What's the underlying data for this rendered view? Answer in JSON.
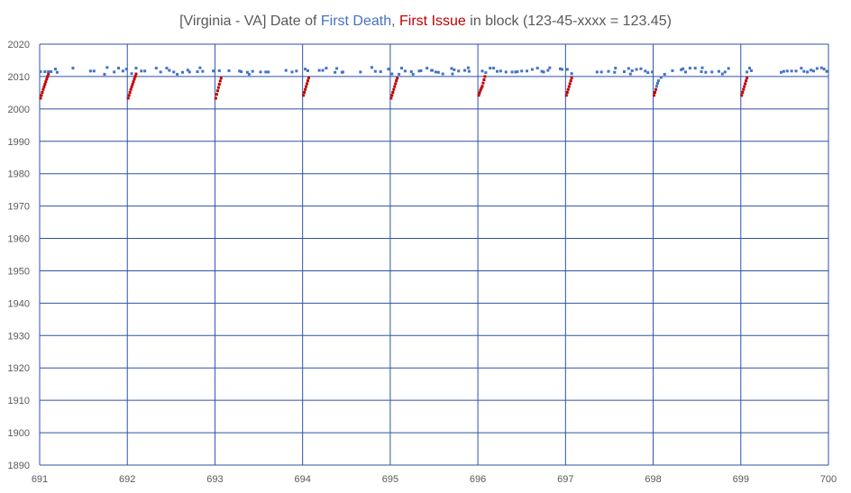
{
  "chart_data": {
    "type": "scatter",
    "title_parts": [
      {
        "text": "[Virginia - VA] Date of ",
        "color": "#595959"
      },
      {
        "text": "First Death",
        "color": "#4472c4"
      },
      {
        "text": ", ",
        "color": "#595959"
      },
      {
        "text": "First Issue",
        "color": "#c00000"
      },
      {
        "text": " in block (123-45-xxxx = 123.45)",
        "color": "#595959"
      }
    ],
    "xlabel": "",
    "ylabel": "",
    "xlim": [
      691,
      700
    ],
    "ylim": [
      1890,
      2020
    ],
    "xticks": [
      "691",
      "692",
      "693",
      "694",
      "695",
      "696",
      "697",
      "698",
      "699",
      "700"
    ],
    "yticks": [
      "2020",
      "2010",
      "2000",
      "1990",
      "1980",
      "1970",
      "1960",
      "1950",
      "1940",
      "1930",
      "1920",
      "1910",
      "1900",
      "1890"
    ],
    "grid": true,
    "grid_color": "#2f52a8",
    "legend": "none",
    "series": [
      {
        "color": "#c00000",
        "points": [
          [
            691.01,
            2003.3
          ],
          [
            691.02,
            2004.2
          ],
          [
            691.03,
            2005.1
          ],
          [
            691.04,
            2006.0
          ],
          [
            691.05,
            2006.8
          ],
          [
            691.06,
            2007.6
          ],
          [
            691.07,
            2008.4
          ],
          [
            691.08,
            2009.2
          ],
          [
            691.09,
            2010.0
          ],
          [
            691.1,
            2010.8
          ],
          [
            692.01,
            2003.3
          ],
          [
            692.02,
            2004.2
          ],
          [
            692.03,
            2005.1
          ],
          [
            692.04,
            2006.0
          ],
          [
            692.05,
            2006.8
          ],
          [
            692.06,
            2007.6
          ],
          [
            692.07,
            2008.4
          ],
          [
            692.08,
            2009.2
          ],
          [
            692.09,
            2010.0
          ],
          [
            692.1,
            2010.8
          ],
          [
            693.01,
            2003.3
          ],
          [
            693.02,
            2004.5
          ],
          [
            693.03,
            2005.6
          ],
          [
            693.04,
            2006.6
          ],
          [
            693.05,
            2007.6
          ],
          [
            693.06,
            2008.6
          ],
          [
            693.07,
            2009.5
          ],
          [
            694.01,
            2004.2
          ],
          [
            694.02,
            2005.1
          ],
          [
            694.03,
            2006.0
          ],
          [
            694.04,
            2006.9
          ],
          [
            694.05,
            2007.8
          ],
          [
            694.06,
            2008.7
          ],
          [
            694.07,
            2009.6
          ],
          [
            695.01,
            2003.3
          ],
          [
            695.02,
            2004.2
          ],
          [
            695.03,
            2005.1
          ],
          [
            695.04,
            2006.0
          ],
          [
            695.05,
            2006.9
          ],
          [
            695.06,
            2007.8
          ],
          [
            695.07,
            2008.7
          ],
          [
            695.08,
            2009.5
          ],
          [
            696.01,
            2004.2
          ],
          [
            696.02,
            2005.0
          ],
          [
            696.03,
            2005.8
          ],
          [
            696.04,
            2006.4
          ],
          [
            696.05,
            2007.0
          ],
          [
            696.06,
            2008.0
          ],
          [
            696.07,
            2009.0
          ],
          [
            696.08,
            2010.0
          ],
          [
            697.01,
            2004.2
          ],
          [
            697.02,
            2005.1
          ],
          [
            697.03,
            2006.0
          ],
          [
            697.04,
            2006.9
          ],
          [
            697.05,
            2007.8
          ],
          [
            697.06,
            2008.7
          ],
          [
            697.07,
            2009.6
          ],
          [
            698.01,
            2004.2
          ],
          [
            698.02,
            2005.1
          ],
          [
            698.03,
            2006.0
          ],
          [
            699.01,
            2004.2
          ],
          [
            699.02,
            2005.1
          ],
          [
            699.03,
            2006.0
          ],
          [
            699.04,
            2006.9
          ],
          [
            699.05,
            2007.8
          ],
          [
            699.06,
            2008.7
          ],
          [
            699.07,
            2009.6
          ]
        ]
      },
      {
        "color": "#4472c4",
        "points": [
          [
            691.01,
            2011.5
          ],
          [
            691.06,
            2011.5
          ],
          [
            691.1,
            2011.5
          ],
          [
            691.13,
            2011.5
          ],
          [
            691.18,
            2012.3
          ],
          [
            691.2,
            2011.3
          ],
          [
            691.38,
            2012.6
          ],
          [
            691.58,
            2011.7
          ],
          [
            691.62,
            2011.7
          ],
          [
            691.74,
            2010.7
          ],
          [
            691.77,
            2012.8
          ],
          [
            691.85,
            2011.4
          ],
          [
            691.9,
            2012.6
          ],
          [
            691.95,
            2011.7
          ],
          [
            691.99,
            2012.3
          ],
          [
            692.05,
            2010.9
          ],
          [
            692.1,
            2012.6
          ],
          [
            692.16,
            2011.7
          ],
          [
            692.2,
            2011.7
          ],
          [
            692.33,
            2012.6
          ],
          [
            692.38,
            2011.4
          ],
          [
            692.45,
            2012.6
          ],
          [
            692.48,
            2011.9
          ],
          [
            692.53,
            2011.4
          ],
          [
            692.57,
            2010.7
          ],
          [
            692.63,
            2011.3
          ],
          [
            692.69,
            2012.0
          ],
          [
            692.71,
            2011.4
          ],
          [
            692.8,
            2011.5
          ],
          [
            692.83,
            2012.7
          ],
          [
            692.86,
            2011.6
          ],
          [
            692.98,
            2011.7
          ],
          [
            693.05,
            2011.8
          ],
          [
            693.16,
            2011.8
          ],
          [
            693.28,
            2011.7
          ],
          [
            693.3,
            2011.5
          ],
          [
            693.37,
            2011.3
          ],
          [
            693.39,
            2010.7
          ],
          [
            693.43,
            2011.6
          ],
          [
            693.52,
            2011.4
          ],
          [
            693.58,
            2011.4
          ],
          [
            693.61,
            2011.4
          ],
          [
            693.81,
            2011.9
          ],
          [
            693.88,
            2011.4
          ],
          [
            693.93,
            2011.7
          ],
          [
            694.03,
            2012.3
          ],
          [
            694.06,
            2011.8
          ],
          [
            694.19,
            2011.9
          ],
          [
            694.23,
            2011.9
          ],
          [
            694.27,
            2012.6
          ],
          [
            694.37,
            2011.3
          ],
          [
            694.39,
            2012.5
          ],
          [
            694.45,
            2011.3
          ],
          [
            694.46,
            2011.4
          ],
          [
            694.66,
            2011.4
          ],
          [
            694.79,
            2012.8
          ],
          [
            694.83,
            2011.6
          ],
          [
            694.89,
            2011.5
          ],
          [
            694.98,
            2012.3
          ],
          [
            695.02,
            2010.8
          ],
          [
            695.1,
            2010.7
          ],
          [
            695.13,
            2012.6
          ],
          [
            695.17,
            2011.7
          ],
          [
            695.24,
            2011.5
          ],
          [
            695.26,
            2010.7
          ],
          [
            695.33,
            2011.7
          ],
          [
            695.35,
            2011.8
          ],
          [
            695.42,
            2012.6
          ],
          [
            695.47,
            2011.9
          ],
          [
            695.48,
            2011.9
          ],
          [
            695.52,
            2011.4
          ],
          [
            695.55,
            2011.3
          ],
          [
            695.6,
            2010.8
          ],
          [
            695.7,
            2012.5
          ],
          [
            695.71,
            2010.8
          ],
          [
            695.73,
            2012.1
          ],
          [
            695.78,
            2011.7
          ],
          [
            695.85,
            2011.9
          ],
          [
            695.89,
            2012.7
          ],
          [
            695.9,
            2011.6
          ],
          [
            696.05,
            2011.7
          ],
          [
            696.09,
            2011.2
          ],
          [
            696.14,
            2012.6
          ],
          [
            696.18,
            2012.6
          ],
          [
            696.22,
            2011.6
          ],
          [
            696.26,
            2011.7
          ],
          [
            696.32,
            2011.4
          ],
          [
            696.39,
            2011.4
          ],
          [
            696.43,
            2011.4
          ],
          [
            696.45,
            2011.5
          ],
          [
            696.5,
            2011.7
          ],
          [
            696.56,
            2011.7
          ],
          [
            696.62,
            2012.2
          ],
          [
            696.68,
            2012.6
          ],
          [
            696.73,
            2011.6
          ],
          [
            696.75,
            2011.4
          ],
          [
            696.8,
            2011.9
          ],
          [
            696.82,
            2012.7
          ],
          [
            696.94,
            2012.4
          ],
          [
            696.96,
            2012.2
          ],
          [
            697.02,
            2012.2
          ],
          [
            697.07,
            2010.9
          ],
          [
            697.36,
            2011.4
          ],
          [
            697.41,
            2011.4
          ],
          [
            697.49,
            2011.6
          ],
          [
            697.56,
            2011.3
          ],
          [
            697.57,
            2012.6
          ],
          [
            697.67,
            2011.5
          ],
          [
            697.72,
            2012.5
          ],
          [
            697.74,
            2010.8
          ],
          [
            697.76,
            2011.8
          ],
          [
            697.81,
            2012.2
          ],
          [
            697.86,
            2012.4
          ],
          [
            697.91,
            2011.7
          ],
          [
            697.94,
            2011.2
          ],
          [
            697.99,
            2011.4
          ],
          [
            698.04,
            2007.0
          ],
          [
            698.05,
            2007.9
          ],
          [
            698.06,
            2008.7
          ],
          [
            698.09,
            2009.7
          ],
          [
            698.13,
            2010.7
          ],
          [
            698.22,
            2011.8
          ],
          [
            698.32,
            2012.1
          ],
          [
            698.34,
            2012.4
          ],
          [
            698.37,
            2011.4
          ],
          [
            698.42,
            2012.6
          ],
          [
            698.48,
            2012.6
          ],
          [
            698.55,
            2011.5
          ],
          [
            698.56,
            2012.7
          ],
          [
            698.6,
            2011.3
          ],
          [
            698.67,
            2011.4
          ],
          [
            698.75,
            2011.6
          ],
          [
            698.79,
            2010.8
          ],
          [
            698.82,
            2011.4
          ],
          [
            698.86,
            2012.5
          ],
          [
            699.07,
            2011.4
          ],
          [
            699.1,
            2012.6
          ],
          [
            699.12,
            2011.8
          ],
          [
            699.46,
            2011.3
          ],
          [
            699.49,
            2011.6
          ],
          [
            699.53,
            2011.7
          ],
          [
            699.58,
            2011.7
          ],
          [
            699.63,
            2011.7
          ],
          [
            699.69,
            2012.6
          ],
          [
            699.72,
            2011.6
          ],
          [
            699.76,
            2011.4
          ],
          [
            699.8,
            2012.0
          ],
          [
            699.83,
            2011.7
          ],
          [
            699.87,
            2012.5
          ],
          [
            699.92,
            2012.7
          ],
          [
            699.95,
            2012.3
          ],
          [
            699.98,
            2011.6
          ]
        ]
      }
    ]
  }
}
